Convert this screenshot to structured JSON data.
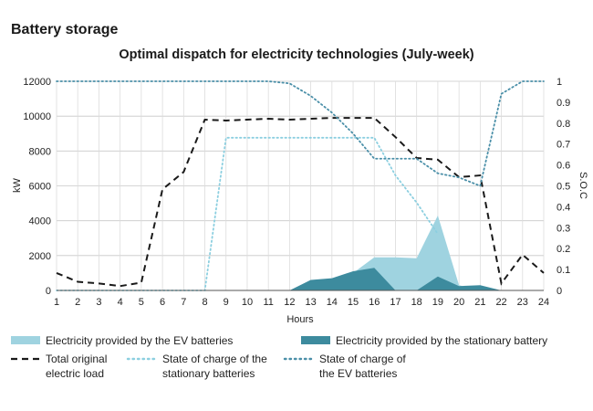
{
  "section_title": "Battery storage",
  "chart_data": {
    "type": "area",
    "title": "Optimal dispatch for electricity technologies (July-week)",
    "xlabel": "Hours",
    "ylabel": "kW",
    "y2label": "S.O.C",
    "x": [
      1,
      2,
      3,
      4,
      5,
      6,
      7,
      8,
      9,
      10,
      11,
      12,
      13,
      14,
      15,
      16,
      17,
      18,
      19,
      20,
      21,
      22,
      23,
      24
    ],
    "ylim": [
      0,
      12000
    ],
    "y2lim": [
      0,
      1
    ],
    "yticks": [
      0,
      2000,
      4000,
      6000,
      8000,
      10000,
      12000
    ],
    "y2ticks": [
      0,
      0.1,
      0.2,
      0.3,
      0.4,
      0.5,
      0.6,
      0.7,
      0.8,
      0.9,
      1
    ],
    "grid": true,
    "legend_position": "bottom",
    "series": [
      {
        "name": "Electricity provided by the EV batteries",
        "kind": "area",
        "axis": "left",
        "color": "#9fd3e0",
        "values": [
          0,
          0,
          0,
          0,
          0,
          0,
          0,
          0,
          0,
          0,
          0,
          0,
          0,
          0,
          1000,
          1900,
          1900,
          1850,
          4300,
          300,
          0,
          0,
          0,
          0
        ]
      },
      {
        "name": "Electricity provided by the stationary battery",
        "kind": "area",
        "axis": "left",
        "color": "#3d8b9e",
        "values": [
          0,
          0,
          0,
          0,
          0,
          0,
          0,
          0,
          0,
          0,
          0,
          0,
          600,
          700,
          1100,
          1300,
          0,
          0,
          800,
          250,
          300,
          0,
          0,
          0
        ]
      },
      {
        "name": "Total original electric load",
        "kind": "line",
        "axis": "left",
        "color": "#1a1a1a",
        "dash": "dash",
        "values": [
          1000,
          500,
          400,
          250,
          450,
          5800,
          6800,
          9800,
          9750,
          9800,
          9850,
          9800,
          9850,
          9900,
          9900,
          9900,
          8800,
          7600,
          7500,
          6500,
          6600,
          400,
          2050,
          1000
        ]
      },
      {
        "name": "State of charge of the stationary batteries",
        "kind": "line",
        "axis": "right",
        "color": "#8ccfe0",
        "dash": "dot",
        "values": [
          0,
          0,
          0,
          0,
          0,
          0,
          0,
          0,
          0.73,
          0.73,
          0.73,
          0.73,
          0.73,
          0.73,
          0.73,
          0.73,
          0.55,
          0.42,
          0.27,
          null,
          null,
          null,
          null,
          null
        ]
      },
      {
        "name": "State of charge of the EV batteries",
        "kind": "line",
        "axis": "right",
        "color": "#4a8fa8",
        "dash": "dot",
        "values": [
          1,
          1,
          1,
          1,
          1,
          1,
          1,
          1,
          1,
          1,
          1,
          0.99,
          0.93,
          0.85,
          0.75,
          0.63,
          0.63,
          0.63,
          0.56,
          0.54,
          0.5,
          0.94,
          1,
          1
        ]
      }
    ],
    "legend": [
      {
        "label": "Electricity provided by the EV batteries",
        "style": "bar",
        "color": "#9fd3e0"
      },
      {
        "label": "Electricity provided by the stationary battery",
        "style": "bar",
        "color": "#3d8b9e"
      },
      {
        "label_lines": [
          "Total original",
          "electric load"
        ],
        "style": "dash",
        "color": "#1a1a1a"
      },
      {
        "label_lines": [
          "State of charge of the",
          "stationary batteries"
        ],
        "style": "dot",
        "color": "#8ccfe0"
      },
      {
        "label_lines": [
          "State of charge of",
          "the EV batteries"
        ],
        "style": "dot",
        "color": "#4a8fa8"
      }
    ]
  }
}
